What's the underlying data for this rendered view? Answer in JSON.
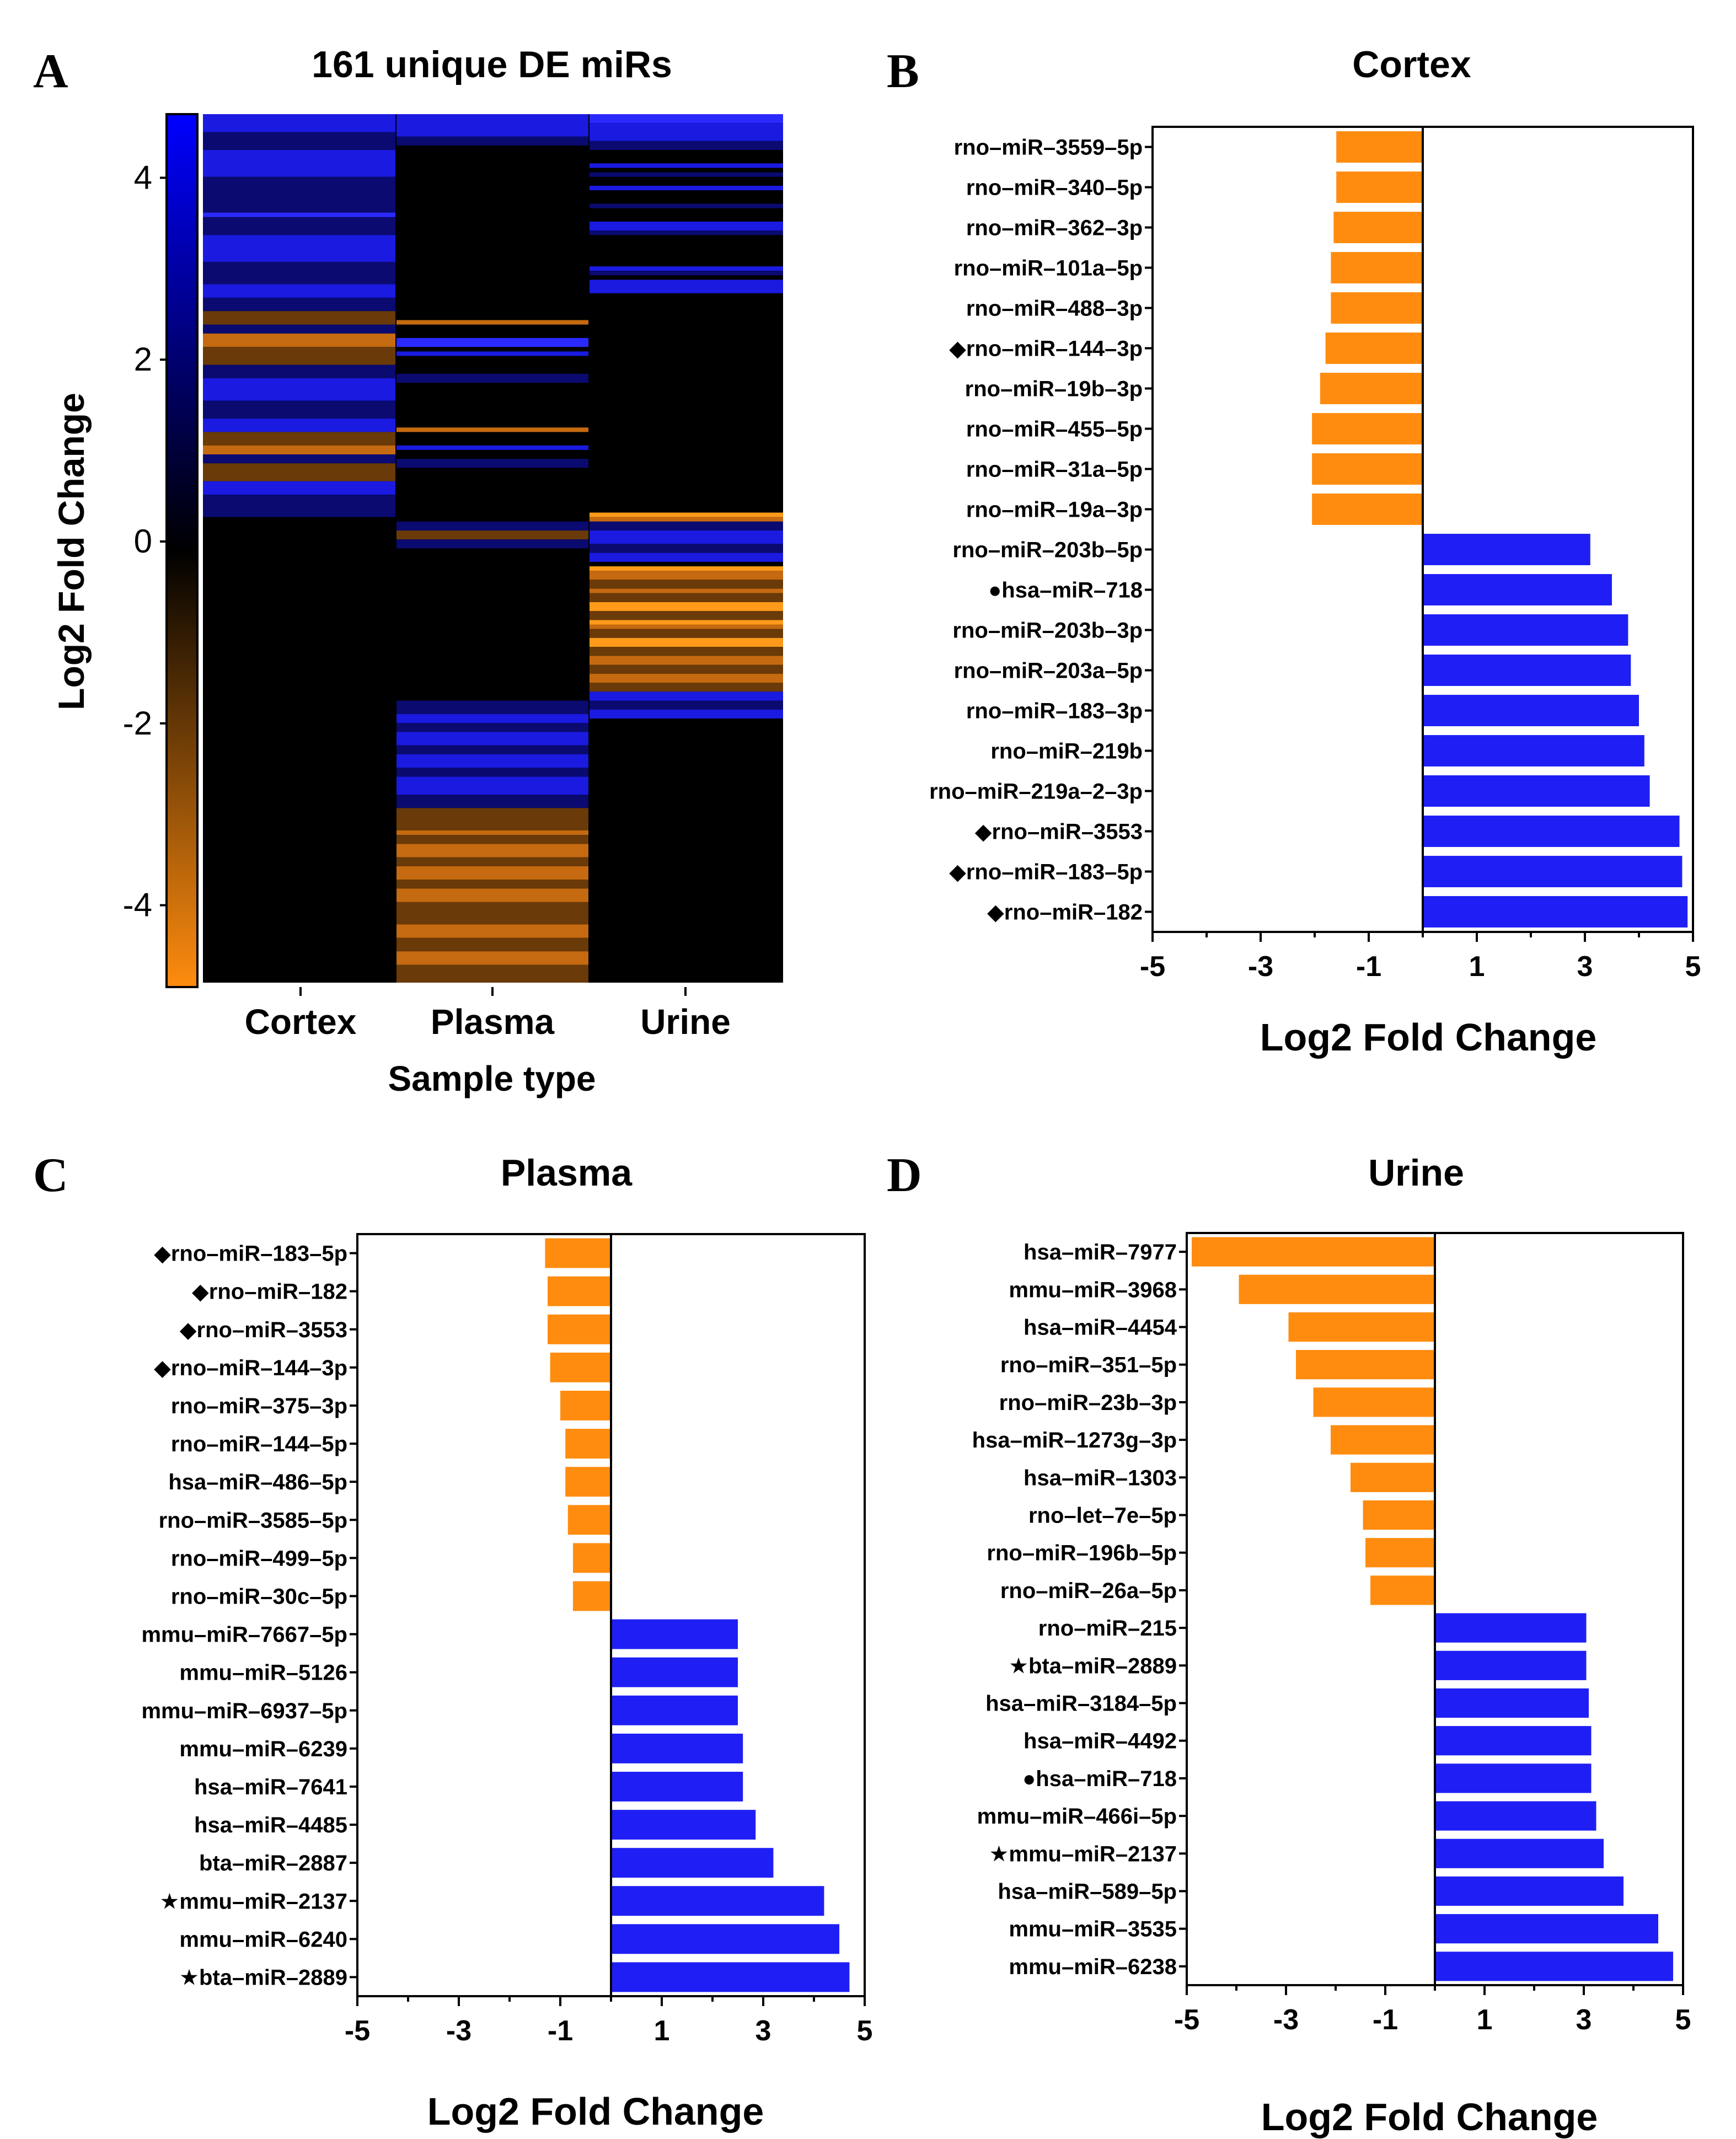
{
  "colors": {
    "up": "#1f1ff5",
    "down": "#ff8c0f",
    "mid": "#000000",
    "frame": "#000000"
  },
  "panels": {
    "A": {
      "letter": "A"
    },
    "B": {
      "letter": "B"
    },
    "C": {
      "letter": "C"
    },
    "D": {
      "letter": "D"
    }
  },
  "markers": {
    "diamond": "◆",
    "circle": "●",
    "star": "★"
  },
  "chart_data": [
    {
      "id": "A",
      "type": "heatmap",
      "title": "161 unique DE miRs",
      "xlabel": "Sample type",
      "ylabel": "Log2 Fold Change",
      "columns": [
        "Cortex",
        "Plasma",
        "Urine"
      ],
      "colorbar": {
        "ticks": [
          4,
          2,
          0,
          -2,
          -4
        ],
        "range": [
          -4.9,
          4.7
        ]
      },
      "row_count": 161
    },
    {
      "id": "B",
      "type": "bar",
      "orientation": "horizontal",
      "title": "Cortex",
      "xlabel": "Log2 Fold Change",
      "xlim": [
        -5,
        5
      ],
      "xticks": [
        -5,
        -3,
        -1,
        1,
        3,
        5
      ],
      "categories": [
        "rno–miR–3559–5p",
        "rno–miR–340–5p",
        "rno–miR–362–3p",
        "rno–miR–101a–5p",
        "rno–miR–488–3p",
        "rno–miR–144–3p",
        "rno–miR–19b–3p",
        "rno–miR–455–5p",
        "rno–miR–31a–5p",
        "rno–miR–19a–3p",
        "rno–miR–203b–5p",
        "hsa–miR–718",
        "rno–miR–203b–3p",
        "rno–miR–203a–5p",
        "rno–miR–183–3p",
        "rno–miR–219b",
        "rno–miR–219a–2–3p",
        "rno–miR–3553",
        "rno–miR–183–5p",
        "rno–miR–182"
      ],
      "values": [
        -1.6,
        -1.6,
        -1.65,
        -1.7,
        -1.7,
        -1.8,
        -1.9,
        -2.05,
        -2.05,
        -2.05,
        3.1,
        3.5,
        3.8,
        3.85,
        4.0,
        4.1,
        4.2,
        4.75,
        4.8,
        4.9
      ],
      "markers": [
        "",
        "",
        "",
        "",
        "",
        "diamond",
        "",
        "",
        "",
        "",
        "",
        "circle",
        "",
        "",
        "",
        "",
        "",
        "diamond",
        "diamond",
        "diamond"
      ]
    },
    {
      "id": "C",
      "type": "bar",
      "orientation": "horizontal",
      "title": "Plasma",
      "xlabel": "Log2 Fold Change",
      "xlim": [
        -5,
        5
      ],
      "xticks": [
        -5,
        -3,
        -1,
        1,
        3,
        5
      ],
      "categories": [
        "rno–miR–183–5p",
        "rno–miR–182",
        "rno–miR–3553",
        "rno–miR–144–3p",
        "rno–miR–375–3p",
        "rno–miR–144–5p",
        "hsa–miR–486–5p",
        "rno–miR–3585–5p",
        "rno–miR–499–5p",
        "rno–miR–30c–5p",
        "mmu–miR–7667–5p",
        "mmu–miR–5126",
        "mmu–miR–6937–5p",
        "mmu–miR–6239",
        "hsa–miR–7641",
        "hsa–miR–4485",
        "bta–miR–2887",
        "mmu–miR–2137",
        "mmu–miR–6240",
        "bta–miR–2889"
      ],
      "values": [
        -1.3,
        -1.25,
        -1.25,
        -1.2,
        -1.0,
        -0.9,
        -0.9,
        -0.85,
        -0.75,
        -0.75,
        2.5,
        2.5,
        2.5,
        2.6,
        2.6,
        2.85,
        3.2,
        4.2,
        4.5,
        4.7
      ],
      "markers": [
        "diamond",
        "diamond",
        "diamond",
        "diamond",
        "",
        "",
        "",
        "",
        "",
        "",
        "",
        "",
        "",
        "",
        "",
        "",
        "",
        "star",
        "",
        "star"
      ]
    },
    {
      "id": "D",
      "type": "bar",
      "orientation": "horizontal",
      "title": "Urine",
      "xlabel": "Log2 Fold Change",
      "xlim": [
        -5,
        5
      ],
      "xticks": [
        -5,
        -3,
        -1,
        1,
        3,
        5
      ],
      "categories": [
        "hsa–miR–7977",
        "mmu–miR–3968",
        "hsa–miR–4454",
        "rno–miR–351–5p",
        "rno–miR–23b–3p",
        "hsa–miR–1273g–3p",
        "hsa–miR–1303",
        "rno–let–7e–5p",
        "rno–miR–196b–5p",
        "rno–miR–26a–5p",
        "rno–miR–215",
        "bta–miR–2889",
        "hsa–miR–3184–5p",
        "hsa–miR–4492",
        "hsa–miR–718",
        "mmu–miR–466i–5p",
        "mmu–miR–2137",
        "hsa–miR–589–5p",
        "mmu–miR–3535",
        "mmu–miR–6238"
      ],
      "values": [
        -4.9,
        -3.95,
        -2.95,
        -2.8,
        -2.45,
        -2.1,
        -1.7,
        -1.45,
        -1.4,
        -1.3,
        3.05,
        3.05,
        3.1,
        3.15,
        3.15,
        3.25,
        3.4,
        3.8,
        4.5,
        4.8
      ],
      "markers": [
        "",
        "",
        "",
        "",
        "",
        "",
        "",
        "",
        "",
        "",
        "",
        "star",
        "",
        "",
        "circle",
        "",
        "star",
        "",
        "",
        ""
      ]
    }
  ]
}
